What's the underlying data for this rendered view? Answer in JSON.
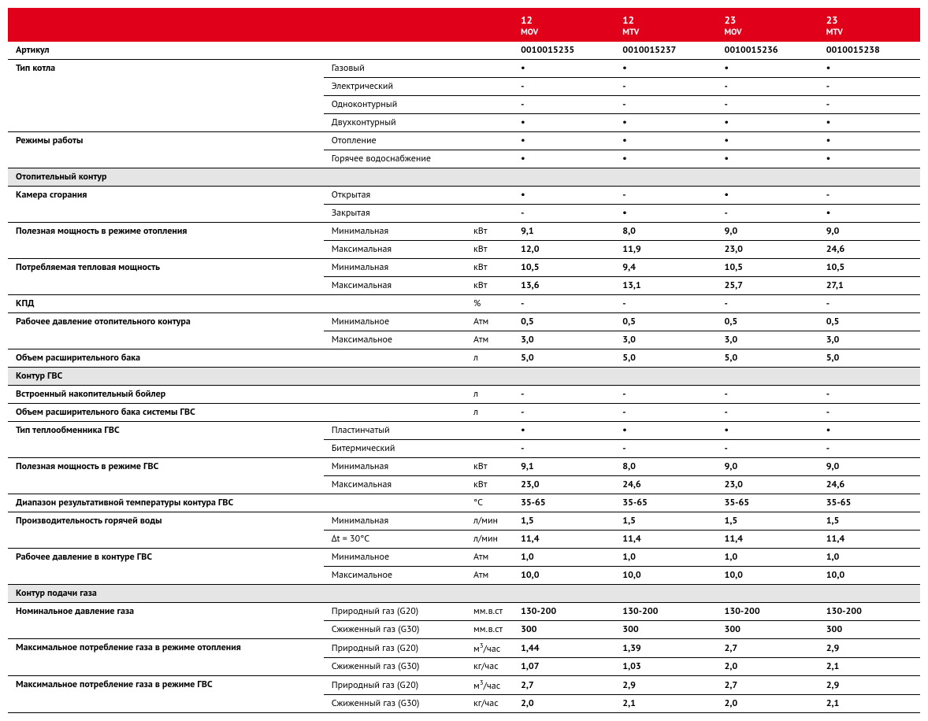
{
  "header": [
    "",
    "",
    "",
    "12\nMOV",
    "12\nMTV",
    "23\nMOV",
    "23\nMTV"
  ],
  "rows": [
    {
      "type": "row",
      "cells": [
        {
          "t": "Артикул",
          "span": 3,
          "cls": "param"
        },
        {
          "t": "0010015235"
        },
        {
          "t": "0010015237"
        },
        {
          "t": "0010015236"
        },
        {
          "t": "0010015238"
        }
      ]
    },
    {
      "type": "row",
      "cells": [
        {
          "t": "Тип котла",
          "rowspan": 4,
          "cls": "param"
        },
        {
          "t": "Газовый",
          "span": 2
        },
        {
          "t": "•"
        },
        {
          "t": "•"
        },
        {
          "t": "•"
        },
        {
          "t": "•"
        }
      ]
    },
    {
      "type": "row",
      "cells": [
        {
          "t": "Электрический",
          "span": 2
        },
        {
          "t": "-"
        },
        {
          "t": "-"
        },
        {
          "t": "-"
        },
        {
          "t": "-"
        }
      ]
    },
    {
      "type": "row",
      "cells": [
        {
          "t": "Одноконтурный",
          "span": 2
        },
        {
          "t": "-"
        },
        {
          "t": "-"
        },
        {
          "t": "-"
        },
        {
          "t": "-"
        }
      ]
    },
    {
      "type": "row",
      "cells": [
        {
          "t": "Двухконтурный",
          "span": 2
        },
        {
          "t": "•"
        },
        {
          "t": "•"
        },
        {
          "t": "•"
        },
        {
          "t": "•"
        }
      ]
    },
    {
      "type": "row",
      "cells": [
        {
          "t": "Режимы работы",
          "rowspan": 2,
          "cls": "param"
        },
        {
          "t": "Отопление",
          "span": 2
        },
        {
          "t": "•"
        },
        {
          "t": "•"
        },
        {
          "t": "•"
        },
        {
          "t": "•"
        }
      ]
    },
    {
      "type": "row",
      "cells": [
        {
          "t": "Горячее водоснабжение",
          "span": 2
        },
        {
          "t": "•"
        },
        {
          "t": "•"
        },
        {
          "t": "•"
        },
        {
          "t": "•"
        }
      ]
    },
    {
      "type": "section",
      "label": "Отопительный контур"
    },
    {
      "type": "row",
      "cells": [
        {
          "t": "Камера сгорания",
          "rowspan": 2,
          "cls": "param"
        },
        {
          "t": "Открытая",
          "span": 2
        },
        {
          "t": "•"
        },
        {
          "t": "-"
        },
        {
          "t": "•"
        },
        {
          "t": "-"
        }
      ]
    },
    {
      "type": "row",
      "cells": [
        {
          "t": "Закрытая",
          "span": 2
        },
        {
          "t": "-"
        },
        {
          "t": "•"
        },
        {
          "t": "-"
        },
        {
          "t": "•"
        }
      ]
    },
    {
      "type": "row",
      "cells": [
        {
          "t": "Полезная мощность в режиме отопления",
          "rowspan": 2,
          "cls": "param"
        },
        {
          "t": "Минимальная"
        },
        {
          "t": "кВт",
          "cls": "unit"
        },
        {
          "t": "9,1"
        },
        {
          "t": "8,0"
        },
        {
          "t": "9,0"
        },
        {
          "t": "9,0"
        }
      ]
    },
    {
      "type": "row",
      "cells": [
        {
          "t": "Максимальная"
        },
        {
          "t": "кВт",
          "cls": "unit"
        },
        {
          "t": "12,0"
        },
        {
          "t": "11,9"
        },
        {
          "t": "23,0"
        },
        {
          "t": "24,6"
        }
      ]
    },
    {
      "type": "row",
      "cells": [
        {
          "t": "Потребляемая тепловая мощность",
          "rowspan": 2,
          "cls": "param"
        },
        {
          "t": "Минимальная"
        },
        {
          "t": "кВт",
          "cls": "unit"
        },
        {
          "t": "10,5"
        },
        {
          "t": "9,4"
        },
        {
          "t": "10,5"
        },
        {
          "t": "10,5"
        }
      ]
    },
    {
      "type": "row",
      "cells": [
        {
          "t": "Максимальная"
        },
        {
          "t": "кВт",
          "cls": "unit"
        },
        {
          "t": "13,6"
        },
        {
          "t": "13,1"
        },
        {
          "t": "25,7"
        },
        {
          "t": "27,1"
        }
      ]
    },
    {
      "type": "row",
      "cells": [
        {
          "t": "КПД",
          "span": 2,
          "cls": "param"
        },
        {
          "t": "%",
          "cls": "unit"
        },
        {
          "t": "-"
        },
        {
          "t": "-"
        },
        {
          "t": "-"
        },
        {
          "t": "-"
        }
      ]
    },
    {
      "type": "row",
      "cells": [
        {
          "t": "Рабочее давление отопительного контура",
          "rowspan": 2,
          "cls": "param"
        },
        {
          "t": "Минимальное"
        },
        {
          "t": "Атм",
          "cls": "unit"
        },
        {
          "t": "0,5"
        },
        {
          "t": "0,5"
        },
        {
          "t": "0,5"
        },
        {
          "t": "0,5"
        }
      ]
    },
    {
      "type": "row",
      "cells": [
        {
          "t": "Максимальное"
        },
        {
          "t": "Атм",
          "cls": "unit"
        },
        {
          "t": "3,0"
        },
        {
          "t": "3,0"
        },
        {
          "t": "3,0"
        },
        {
          "t": "3,0"
        }
      ]
    },
    {
      "type": "row",
      "cells": [
        {
          "t": "Объем расширительного бака",
          "span": 2,
          "cls": "param"
        },
        {
          "t": "л",
          "cls": "unit"
        },
        {
          "t": "5,0"
        },
        {
          "t": "5,0"
        },
        {
          "t": "5,0"
        },
        {
          "t": "5,0"
        }
      ]
    },
    {
      "type": "section",
      "label": "Контур ГВС"
    },
    {
      "type": "row",
      "cells": [
        {
          "t": "Встроенный накопительный бойлер",
          "span": 2,
          "cls": "param"
        },
        {
          "t": "л",
          "cls": "unit"
        },
        {
          "t": "-"
        },
        {
          "t": "-"
        },
        {
          "t": "-"
        },
        {
          "t": "-"
        }
      ]
    },
    {
      "type": "row",
      "cells": [
        {
          "t": "Объем расширительного бака системы ГВС",
          "span": 2,
          "cls": "param"
        },
        {
          "t": "л",
          "cls": "unit"
        },
        {
          "t": "-"
        },
        {
          "t": "-"
        },
        {
          "t": "-"
        },
        {
          "t": "-"
        }
      ]
    },
    {
      "type": "row",
      "cells": [
        {
          "t": "Тип теплообменника ГВС",
          "rowspan": 2,
          "cls": "param"
        },
        {
          "t": "Пластинчатый",
          "span": 2
        },
        {
          "t": "•"
        },
        {
          "t": "•"
        },
        {
          "t": "•"
        },
        {
          "t": "•"
        }
      ]
    },
    {
      "type": "row",
      "cells": [
        {
          "t": "Битермический",
          "span": 2
        },
        {
          "t": "-"
        },
        {
          "t": "-"
        },
        {
          "t": "-"
        },
        {
          "t": "-"
        }
      ]
    },
    {
      "type": "row",
      "cells": [
        {
          "t": "Полезная мощность в режиме ГВС",
          "rowspan": 2,
          "cls": "param"
        },
        {
          "t": "Минимальная"
        },
        {
          "t": "кВт",
          "cls": "unit"
        },
        {
          "t": "9,1"
        },
        {
          "t": "8,0"
        },
        {
          "t": "9,0"
        },
        {
          "t": "9,0"
        }
      ]
    },
    {
      "type": "row",
      "cells": [
        {
          "t": "Максимальная"
        },
        {
          "t": "кВт",
          "cls": "unit"
        },
        {
          "t": "23,0"
        },
        {
          "t": "24,6"
        },
        {
          "t": "23,0"
        },
        {
          "t": "24,6"
        }
      ]
    },
    {
      "type": "row",
      "cells": [
        {
          "t": "Диапазон результативной температуры контура ГВС",
          "span": 2,
          "cls": "param"
        },
        {
          "t": "°С",
          "cls": "unit"
        },
        {
          "t": "35-65"
        },
        {
          "t": "35-65"
        },
        {
          "t": "35-65"
        },
        {
          "t": "35-65"
        }
      ]
    },
    {
      "type": "row",
      "cells": [
        {
          "t": "Производительность горячей воды",
          "rowspan": 2,
          "cls": "param"
        },
        {
          "t": "Минимальная"
        },
        {
          "t": "л/мин",
          "cls": "unit"
        },
        {
          "t": "1,5"
        },
        {
          "t": "1,5"
        },
        {
          "t": "1,5"
        },
        {
          "t": "1,5"
        }
      ]
    },
    {
      "type": "row",
      "cells": [
        {
          "t": "Δt = 30°C"
        },
        {
          "t": "л/мин",
          "cls": "unit"
        },
        {
          "t": "11,4"
        },
        {
          "t": "11,4"
        },
        {
          "t": "11,4"
        },
        {
          "t": "11,4"
        }
      ]
    },
    {
      "type": "row",
      "cells": [
        {
          "t": "Рабочее давление в контуре ГВС",
          "rowspan": 2,
          "cls": "param"
        },
        {
          "t": "Минимальное"
        },
        {
          "t": "Атм",
          "cls": "unit"
        },
        {
          "t": "1,0"
        },
        {
          "t": "1,0"
        },
        {
          "t": "1,0"
        },
        {
          "t": "1,0"
        }
      ]
    },
    {
      "type": "row",
      "cells": [
        {
          "t": "Максимальное"
        },
        {
          "t": "Атм",
          "cls": "unit"
        },
        {
          "t": "10,0"
        },
        {
          "t": "10,0"
        },
        {
          "t": "10,0"
        },
        {
          "t": "10,0"
        }
      ]
    },
    {
      "type": "section",
      "label": "Контур подачи газа"
    },
    {
      "type": "row",
      "cells": [
        {
          "t": "Номинальное давление газа",
          "rowspan": 2,
          "cls": "param"
        },
        {
          "t": "Природный газ (G20)"
        },
        {
          "t": "мм.в.ст",
          "cls": "unit"
        },
        {
          "t": "130-200"
        },
        {
          "t": "130-200"
        },
        {
          "t": "130-200"
        },
        {
          "t": "130-200"
        }
      ]
    },
    {
      "type": "row",
      "cells": [
        {
          "t": "Сжиженный газ (G30)"
        },
        {
          "t": "мм.в.ст",
          "cls": "unit"
        },
        {
          "t": "300"
        },
        {
          "t": "300"
        },
        {
          "t": "300"
        },
        {
          "t": "300"
        }
      ]
    },
    {
      "type": "row",
      "cells": [
        {
          "t": "Максимальное потребление газа в режиме отопления",
          "rowspan": 2,
          "cls": "param"
        },
        {
          "t": "Природный газ (G20)"
        },
        {
          "t": "м³/час",
          "cls": "unit",
          "html": true
        },
        {
          "t": "1,44"
        },
        {
          "t": "1,39"
        },
        {
          "t": "2,7"
        },
        {
          "t": "2,9"
        }
      ]
    },
    {
      "type": "row",
      "cells": [
        {
          "t": "Сжиженный газ (G30)"
        },
        {
          "t": "кг/час",
          "cls": "unit"
        },
        {
          "t": "1,07"
        },
        {
          "t": "1,03"
        },
        {
          "t": "2,0"
        },
        {
          "t": "2,1"
        }
      ]
    },
    {
      "type": "row",
      "cells": [
        {
          "t": "Максимальное потребление газа в режиме ГВС",
          "rowspan": 2,
          "cls": "param"
        },
        {
          "t": "Природный газ (G20)"
        },
        {
          "t": "м³/час",
          "cls": "unit",
          "html": true
        },
        {
          "t": "2,7"
        },
        {
          "t": "2,9"
        },
        {
          "t": "2,7"
        },
        {
          "t": "2,9"
        }
      ]
    },
    {
      "type": "row",
      "cells": [
        {
          "t": "Сжиженный газ (G30)"
        },
        {
          "t": "кг/час",
          "cls": "unit"
        },
        {
          "t": "2,0"
        },
        {
          "t": "2,1"
        },
        {
          "t": "2,0"
        },
        {
          "t": "2,1"
        }
      ]
    }
  ]
}
